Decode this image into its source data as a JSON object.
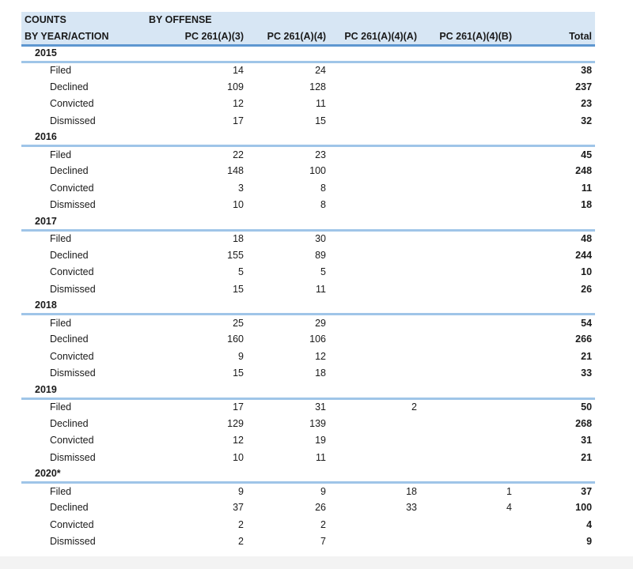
{
  "title": {
    "line1": "COUNTS",
    "line2": "BY YEAR/ACTION"
  },
  "offense_header": "BY OFFENSE",
  "columns": [
    "PC 261(A)(3)",
    "PC 261(A)(4)",
    "PC 261(A)(4)(A)",
    "PC 261(A)(4)(B)",
    "Total"
  ],
  "sections": [
    {
      "year": "2015",
      "rows": [
        {
          "action": "Filed",
          "values": [
            "14",
            "24",
            "",
            "",
            "38"
          ]
        },
        {
          "action": "Declined",
          "values": [
            "109",
            "128",
            "",
            "",
            "237"
          ]
        },
        {
          "action": "Convicted",
          "values": [
            "12",
            "11",
            "",
            "",
            "23"
          ]
        },
        {
          "action": "Dismissed",
          "values": [
            "17",
            "15",
            "",
            "",
            "32"
          ]
        }
      ]
    },
    {
      "year": "2016",
      "rows": [
        {
          "action": "Filed",
          "values": [
            "22",
            "23",
            "",
            "",
            "45"
          ]
        },
        {
          "action": "Declined",
          "values": [
            "148",
            "100",
            "",
            "",
            "248"
          ]
        },
        {
          "action": "Convicted",
          "values": [
            "3",
            "8",
            "",
            "",
            "11"
          ]
        },
        {
          "action": "Dismissed",
          "values": [
            "10",
            "8",
            "",
            "",
            "18"
          ]
        }
      ]
    },
    {
      "year": "2017",
      "rows": [
        {
          "action": "Filed",
          "values": [
            "18",
            "30",
            "",
            "",
            "48"
          ]
        },
        {
          "action": "Declined",
          "values": [
            "155",
            "89",
            "",
            "",
            "244"
          ]
        },
        {
          "action": "Convicted",
          "values": [
            "5",
            "5",
            "",
            "",
            "10"
          ]
        },
        {
          "action": "Dismissed",
          "values": [
            "15",
            "11",
            "",
            "",
            "26"
          ]
        }
      ]
    },
    {
      "year": "2018",
      "rows": [
        {
          "action": "Filed",
          "values": [
            "25",
            "29",
            "",
            "",
            "54"
          ]
        },
        {
          "action": "Declined",
          "values": [
            "160",
            "106",
            "",
            "",
            "266"
          ]
        },
        {
          "action": "Convicted",
          "values": [
            "9",
            "12",
            "",
            "",
            "21"
          ]
        },
        {
          "action": "Dismissed",
          "values": [
            "15",
            "18",
            "",
            "",
            "33"
          ]
        }
      ]
    },
    {
      "year": "2019",
      "rows": [
        {
          "action": "Filed",
          "values": [
            "17",
            "31",
            "2",
            "",
            "50"
          ]
        },
        {
          "action": "Declined",
          "values": [
            "129",
            "139",
            "",
            "",
            "268"
          ]
        },
        {
          "action": "Convicted",
          "values": [
            "12",
            "19",
            "",
            "",
            "31"
          ]
        },
        {
          "action": "Dismissed",
          "values": [
            "10",
            "11",
            "",
            "",
            "21"
          ]
        }
      ]
    },
    {
      "year": "2020*",
      "rows": [
        {
          "action": "Filed",
          "values": [
            "9",
            "9",
            "18",
            "1",
            "37"
          ]
        },
        {
          "action": "Declined",
          "values": [
            "37",
            "26",
            "33",
            "4",
            "100"
          ]
        },
        {
          "action": "Convicted",
          "values": [
            "2",
            "2",
            "",
            "",
            "4"
          ]
        },
        {
          "action": "Dismissed",
          "values": [
            "2",
            "7",
            "",
            "",
            "9"
          ]
        }
      ]
    }
  ],
  "colors": {
    "header_fill": "#d7e6f4",
    "header_rule": "#5e97d0",
    "year_rule": "#9fc5e8",
    "text": "#1a1a1a",
    "footer_strip": "#f3f3f3"
  }
}
